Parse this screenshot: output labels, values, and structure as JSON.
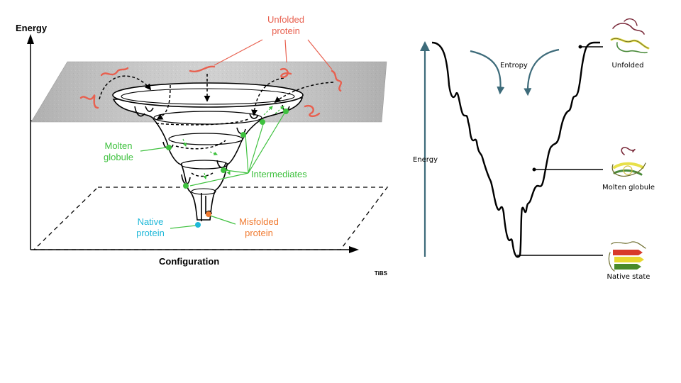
{
  "left_panel": {
    "axis_energy": "Energy",
    "axis_configuration": "Configuration",
    "unfolded_line1": "Unfolded",
    "unfolded_line2": "protein",
    "molten_line1": "Molten",
    "molten_line2": "globule",
    "intermediates": "Intermediates",
    "native_line1": "Native",
    "native_line2": "protein",
    "misfolded_line1": "Misfolded",
    "misfolded_line2": "protein",
    "journal": "TiBS"
  },
  "right_panel": {
    "energy": "Energy",
    "entropy": "Entropy",
    "unfolded": "Unfolded",
    "molten_globule": "Molten globule",
    "native_state": "Native state"
  },
  "colors": {
    "unfolded_red": "#e8604f",
    "green": "#3ec13e",
    "native_cyan": "#1fb8d8",
    "misfolded_orange": "#f07a30",
    "teal_arrow": "#3d6b7a"
  }
}
